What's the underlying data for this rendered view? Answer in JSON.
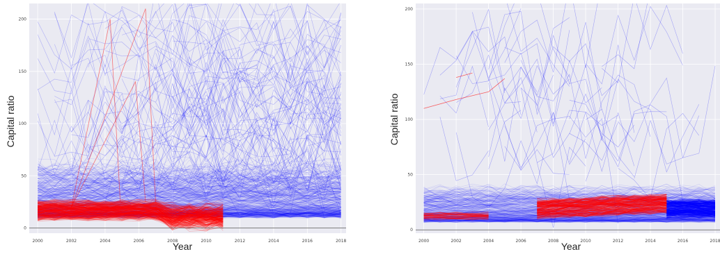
{
  "colors": {
    "background": "#eaeaf2",
    "grid": "#ffffff",
    "series_blue": "#0000ff",
    "series_red": "#ff0000",
    "zero_line": "#555555"
  },
  "chart_data": [
    {
      "type": "line",
      "xlabel": "Year",
      "ylabel": "Capital ratio",
      "xlim": [
        1999.5,
        2018.3
      ],
      "ylim": [
        -5,
        215
      ],
      "x_ticks": [
        2000,
        2002,
        2004,
        2006,
        2008,
        2010,
        2012,
        2014,
        2016,
        2018
      ],
      "y_ticks": [
        0,
        50,
        100,
        150,
        200
      ],
      "grid": true,
      "series": [
        {
          "color": "blue",
          "description_values": {
            "x_range": [
              2000,
              2018
            ],
            "dense_band": [
              10,
              60
            ]
          }
        },
        {
          "color": "red",
          "description_values": {
            "x_range": [
              2000,
              2011
            ],
            "dense_band": [
              5,
              30
            ]
          }
        }
      ]
    },
    {
      "type": "line",
      "xlabel": "Year",
      "ylabel": "Capital ratio",
      "xlim": [
        1999.5,
        2018.3
      ],
      "ylim": [
        -3,
        205
      ],
      "x_ticks": [
        2000,
        2002,
        2004,
        2006,
        2008,
        2010,
        2012,
        2014,
        2016,
        2018
      ],
      "y_ticks": [
        0,
        50,
        100,
        150,
        200
      ],
      "grid": true,
      "series": [
        {
          "color": "blue",
          "description_values": {
            "x_range": [
              2000,
              2018
            ],
            "dense_band": [
              10,
              30
            ]
          }
        },
        {
          "color": "red",
          "description_values": {
            "x_range": [
              2000,
              2015
            ],
            "dense_band": [
              10,
              30
            ]
          }
        }
      ]
    }
  ]
}
